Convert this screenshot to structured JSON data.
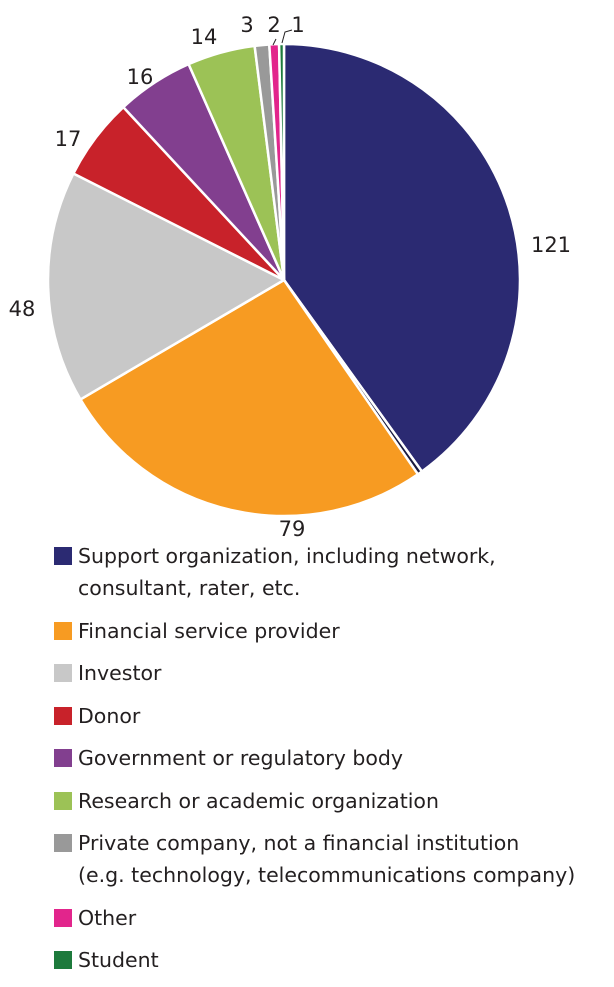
{
  "chart_data": {
    "type": "pie",
    "title": "",
    "slices": [
      {
        "label": "Support organization, including network,\nconsultant, rater, etc.",
        "value": 121,
        "value_label": "121",
        "color": "#2b2a72"
      },
      {
        "label": "Unlabeled",
        "value": 1,
        "value_label": "",
        "color": "#1b1b3f"
      },
      {
        "label": "Financial service provider",
        "value": 79,
        "value_label": "79",
        "color": "#f79b22"
      },
      {
        "label": "Investor",
        "value": 48,
        "value_label": "48",
        "color": "#c8c8c8"
      },
      {
        "label": "Donor",
        "value": 17,
        "value_label": "17",
        "color": "#c8222a"
      },
      {
        "label": "Government or regulatory body",
        "value": 16,
        "value_label": "16",
        "color": "#823f8f"
      },
      {
        "label": "Research or academic organization",
        "value": 14,
        "value_label": "14",
        "color": "#9cc256"
      },
      {
        "label": "Private company, not a financial institution\n(e.g. technology, telecommunications company)",
        "value": 3,
        "value_label": "3",
        "color": "#999999"
      },
      {
        "label": "Other",
        "value": 2,
        "value_label": "2",
        "color": "#e2258c"
      },
      {
        "label": "Student",
        "value": 1,
        "value_label": "1",
        "color": "#1d7a3c"
      }
    ],
    "legend": [
      {
        "label": "Support organization, including network,\nconsultant, rater, etc.",
        "color": "#2b2a72"
      },
      {
        "label": "Financial service provider",
        "color": "#f79b22"
      },
      {
        "label": "Investor",
        "color": "#c8c8c8"
      },
      {
        "label": "Donor",
        "color": "#c8222a"
      },
      {
        "label": "Government or regulatory body",
        "color": "#823f8f"
      },
      {
        "label": "Research or academic organization",
        "color": "#9cc256"
      },
      {
        "label": "Private company, not a financial institution\n(e.g. technology, telecommunications company)",
        "color": "#999999"
      },
      {
        "label": "Other",
        "color": "#e2258c"
      },
      {
        "label": "Student",
        "color": "#1d7a3c"
      }
    ],
    "legend_placement": "bottom",
    "start": "top, clockwise"
  }
}
